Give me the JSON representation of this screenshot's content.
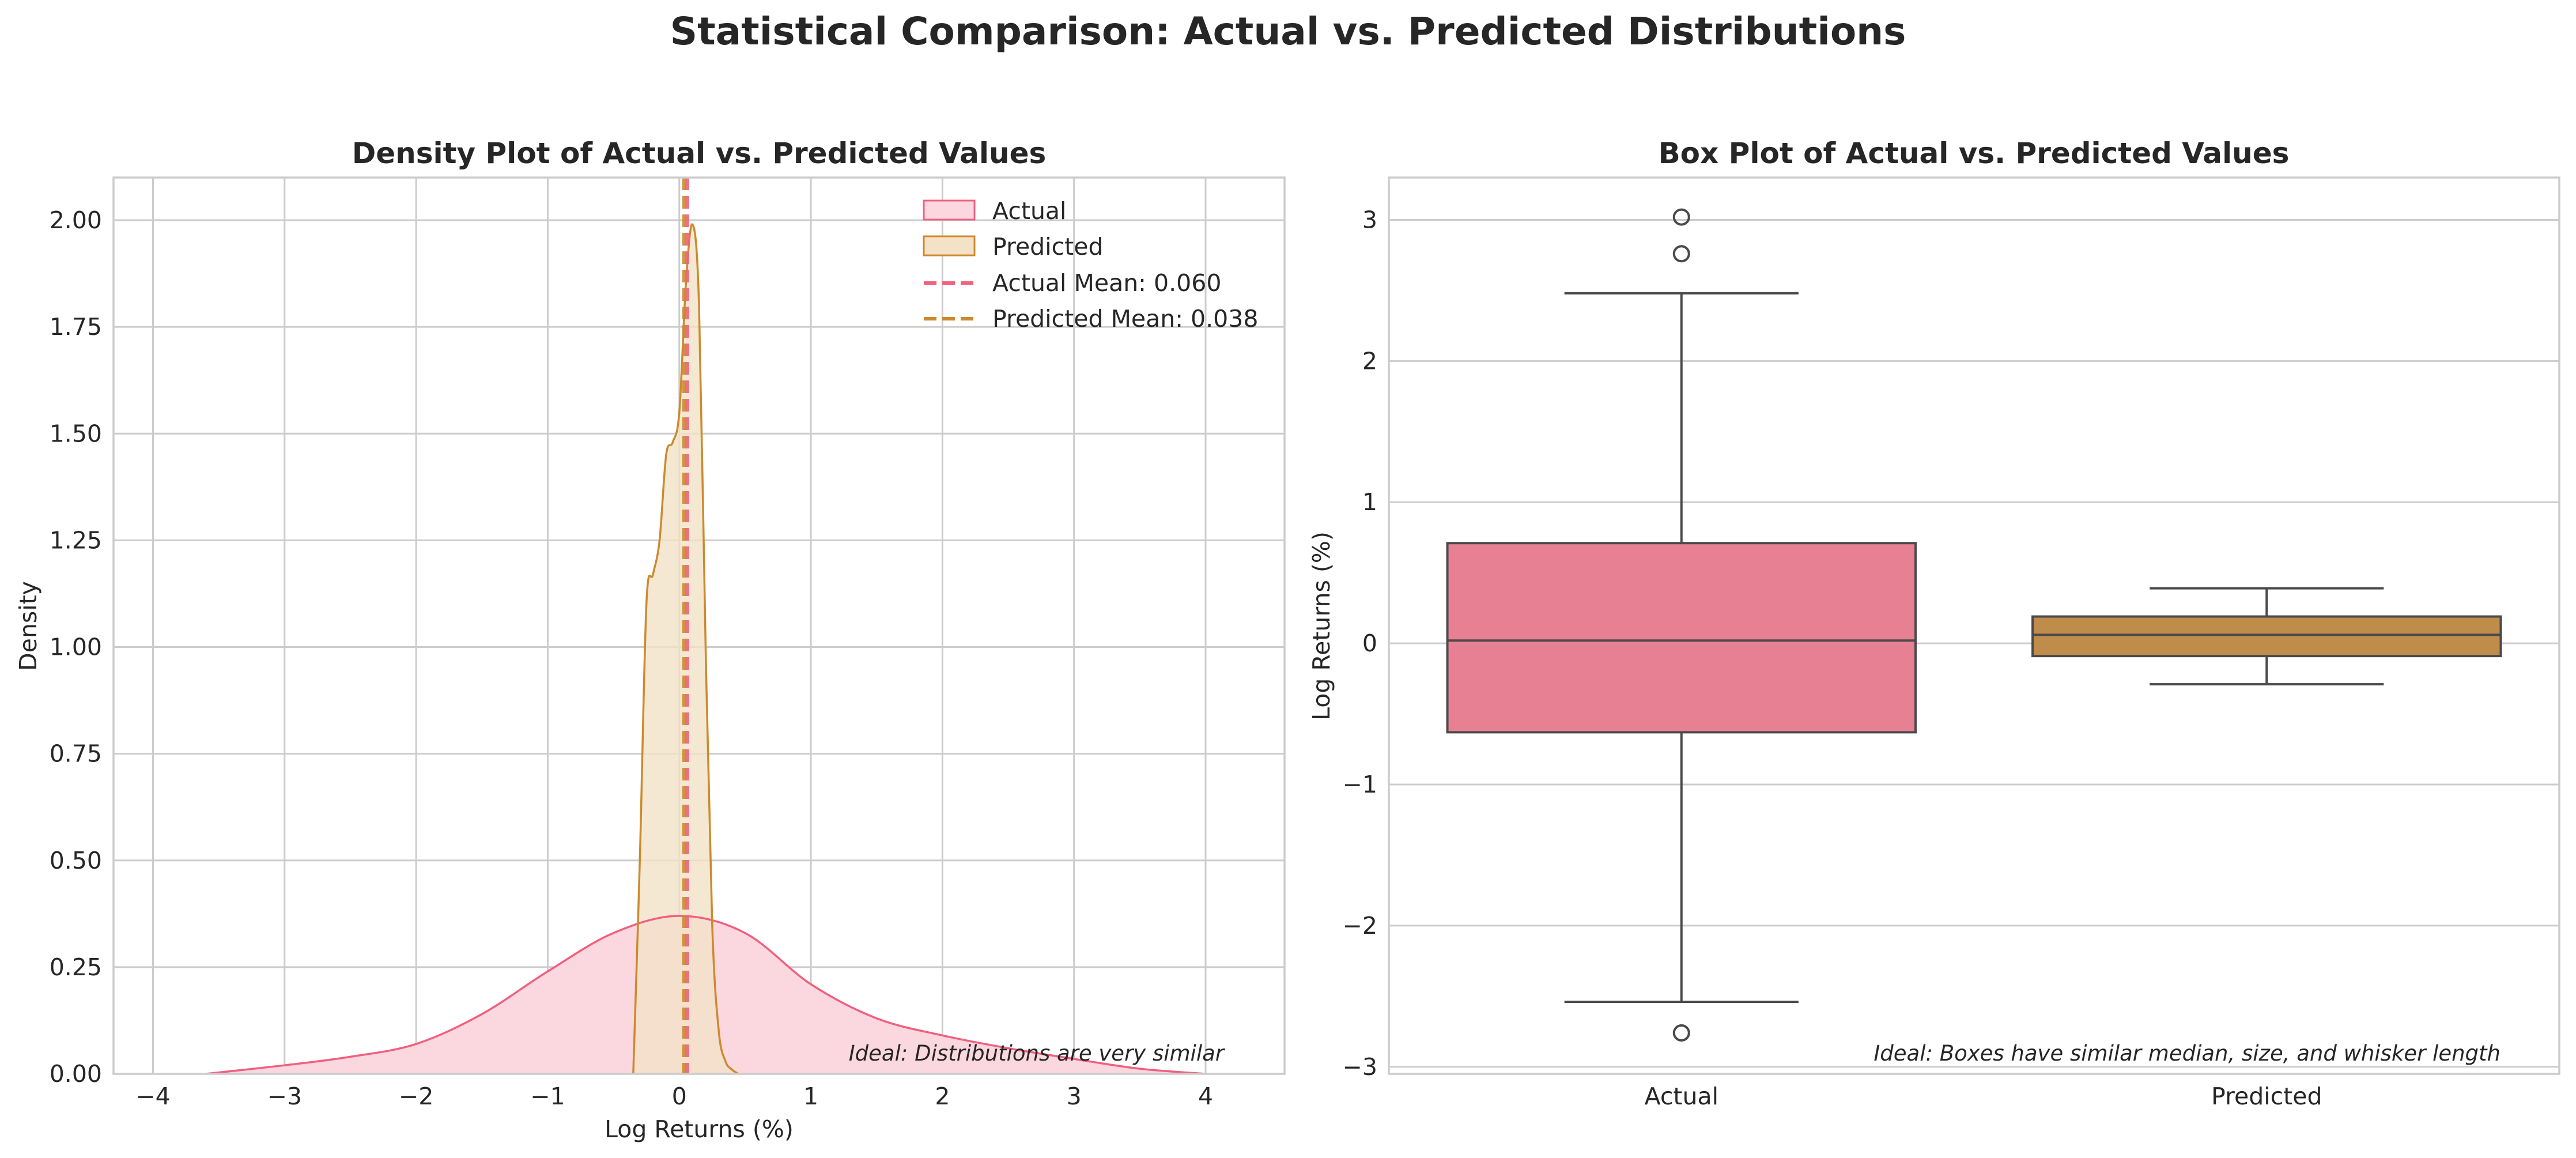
{
  "figure": {
    "title": "Statistical Comparison: Actual vs. Predicted Distributions"
  },
  "colors": {
    "actual": "#f0607f",
    "actual_fill": "#fbd7df",
    "predicted": "#cc8a2f",
    "predicted_fill": "#f3e2c7",
    "actual_box": "#e88093",
    "predicted_box": "#c08c4a",
    "box_edge": "#4a4a4a",
    "grid": "#cccccc"
  },
  "chart_data": [
    {
      "type": "area",
      "title": "Density Plot of Actual vs. Predicted Values",
      "xlabel": "Log Returns (%)",
      "ylabel": "Density",
      "xlim": [
        -4.3,
        4.6
      ],
      "ylim": [
        0,
        2.1
      ],
      "xticks": [
        -4,
        -3,
        -2,
        -1,
        0,
        1,
        2,
        3,
        4
      ],
      "xtick_labels": [
        "−4",
        "−3",
        "−2",
        "−1",
        "0",
        "1",
        "2",
        "3",
        "4"
      ],
      "yticks": [
        0,
        0.25,
        0.5,
        0.75,
        1.0,
        1.25,
        1.5,
        1.75,
        2.0
      ],
      "ytick_labels": [
        "0.00",
        "0.25",
        "0.50",
        "0.75",
        "1.00",
        "1.25",
        "1.50",
        "1.75",
        "2.00"
      ],
      "grid": true,
      "legend_position": "top-right",
      "series": [
        {
          "name": "Actual",
          "x": [
            -3.6,
            -3.0,
            -2.5,
            -2.0,
            -1.5,
            -1.0,
            -0.5,
            0.0,
            0.5,
            1.0,
            1.5,
            2.0,
            2.5,
            3.0,
            3.5,
            4.0
          ],
          "y": [
            0.0,
            0.02,
            0.04,
            0.07,
            0.14,
            0.24,
            0.33,
            0.37,
            0.33,
            0.21,
            0.13,
            0.09,
            0.06,
            0.035,
            0.012,
            0.0
          ]
        },
        {
          "name": "Predicted",
          "x": [
            -0.35,
            -0.3,
            -0.25,
            -0.2,
            -0.15,
            -0.1,
            -0.05,
            0.0,
            0.05,
            0.1,
            0.15,
            0.2,
            0.25,
            0.3,
            0.35,
            0.4,
            0.45
          ],
          "y": [
            0.0,
            0.5,
            1.1,
            1.17,
            1.25,
            1.45,
            1.48,
            1.55,
            1.85,
            1.99,
            1.8,
            1.0,
            0.35,
            0.1,
            0.03,
            0.01,
            0.0
          ]
        }
      ],
      "reference_lines": [
        {
          "name": "Actual Mean: 0.060",
          "x": 0.06
        },
        {
          "name": "Predicted Mean: 0.038",
          "x": 0.038
        }
      ],
      "annotation": "Ideal: Distributions are very similar"
    },
    {
      "type": "box",
      "title": "Box Plot of Actual vs. Predicted Values",
      "xlabel": "",
      "ylabel": "Log Returns (%)",
      "ylim": [
        -3.05,
        3.3
      ],
      "yticks": [
        -3,
        -2,
        -1,
        0,
        1,
        2,
        3
      ],
      "ytick_labels": [
        "−3",
        "−2",
        "−1",
        "0",
        "1",
        "2",
        "3"
      ],
      "categories": [
        "Actual",
        "Predicted"
      ],
      "boxes": [
        {
          "name": "Actual",
          "whisker_low": -2.54,
          "q1": -0.63,
          "median": 0.02,
          "q3": 0.71,
          "whisker_high": 2.48,
          "outliers": [
            3.02,
            2.76,
            -2.76
          ]
        },
        {
          "name": "Predicted",
          "whisker_low": -0.29,
          "q1": -0.09,
          "median": 0.06,
          "q3": 0.19,
          "whisker_high": 0.39,
          "outliers": []
        }
      ],
      "grid": true,
      "annotation": "Ideal: Boxes have similar median, size, and whisker length"
    }
  ]
}
